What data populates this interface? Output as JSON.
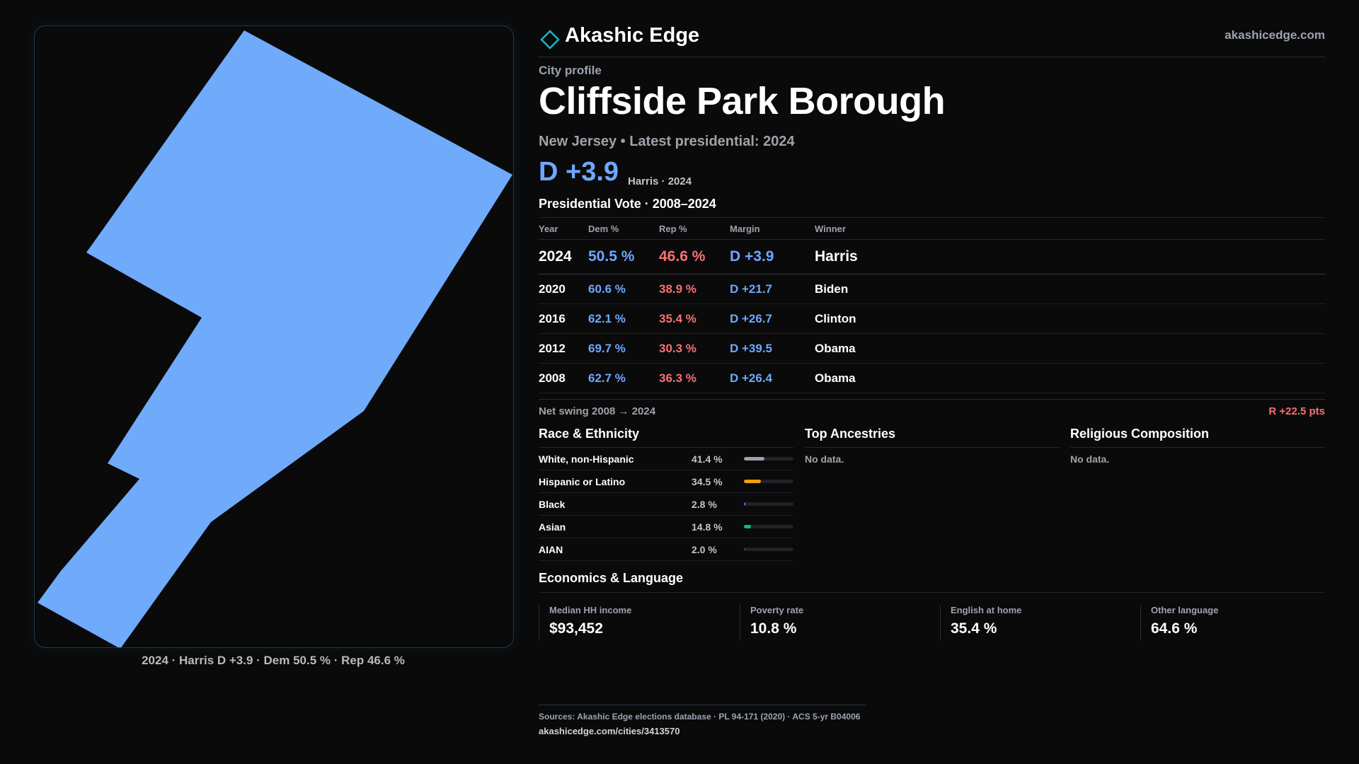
{
  "map": {
    "shape_fill": "#70aafa",
    "caption": "2024 · Harris D +3.9 · Dem 50.5 % · Rep 46.6 %"
  },
  "brand": {
    "name": "Akashic Edge",
    "url": "akashicedge.com",
    "icon": "diamond-icon",
    "accent": "#14b8c8"
  },
  "profile": {
    "eyebrow": "City profile",
    "title": "Cliffside Park Borough",
    "subtitle": "New Jersey • Latest presidential: 2024",
    "margin": "D +3.9",
    "margin_note": "Harris · 2024"
  },
  "vote": {
    "title": "Presidential Vote · 2008–2024",
    "headers": {
      "year": "Year",
      "dem": "Dem %",
      "rep": "Rep %",
      "margin": "Margin",
      "winner": "Winner"
    },
    "rows": [
      {
        "year": "2024",
        "dem": "50.5 %",
        "rep": "46.6 %",
        "margin": "D +3.9",
        "winner": "Harris"
      },
      {
        "year": "2020",
        "dem": "60.6 %",
        "rep": "38.9 %",
        "margin": "D +21.7",
        "winner": "Biden"
      },
      {
        "year": "2016",
        "dem": "62.1 %",
        "rep": "35.4 %",
        "margin": "D +26.7",
        "winner": "Clinton"
      },
      {
        "year": "2012",
        "dem": "69.7 %",
        "rep": "30.3 %",
        "margin": "D +39.5",
        "winner": "Obama"
      },
      {
        "year": "2008",
        "dem": "62.7 %",
        "rep": "36.3 %",
        "margin": "D +26.4",
        "winner": "Obama"
      }
    ],
    "swing_label": "Net swing 2008 → 2024",
    "swing_value": "R +22.5 pts"
  },
  "race": {
    "title": "Race & Ethnicity",
    "rows": [
      {
        "label": "White, non-Hispanic",
        "pct": "41.4 %",
        "share": 0.414,
        "color": "#9ca3af"
      },
      {
        "label": "Hispanic or Latino",
        "pct": "34.5 %",
        "share": 0.345,
        "color": "#f59e0b"
      },
      {
        "label": "Black",
        "pct": "2.8 %",
        "share": 0.028,
        "color": "#8b5cf6"
      },
      {
        "label": "Asian",
        "pct": "14.8 %",
        "share": 0.148,
        "color": "#10b981"
      },
      {
        "label": "AIAN",
        "pct": "2.0 %",
        "share": 0.02,
        "color": "#b45309"
      }
    ]
  },
  "ancestries": {
    "title": "Top Ancestries",
    "empty": "No data."
  },
  "religion": {
    "title": "Religious Composition",
    "empty": "No data."
  },
  "economics": {
    "title": "Economics & Language",
    "stats": [
      {
        "label": "Median HH income",
        "value": "$93,452"
      },
      {
        "label": "Poverty rate",
        "value": "10.8 %"
      },
      {
        "label": "English at home",
        "value": "35.4 %"
      },
      {
        "label": "Other language",
        "value": "64.6 %"
      }
    ]
  },
  "footer": {
    "sources": "Sources: Akashic Edge elections database · PL 94-171 (2020) · ACS 5-yr B04006",
    "url": "akashicedge.com/cities/3413570"
  }
}
